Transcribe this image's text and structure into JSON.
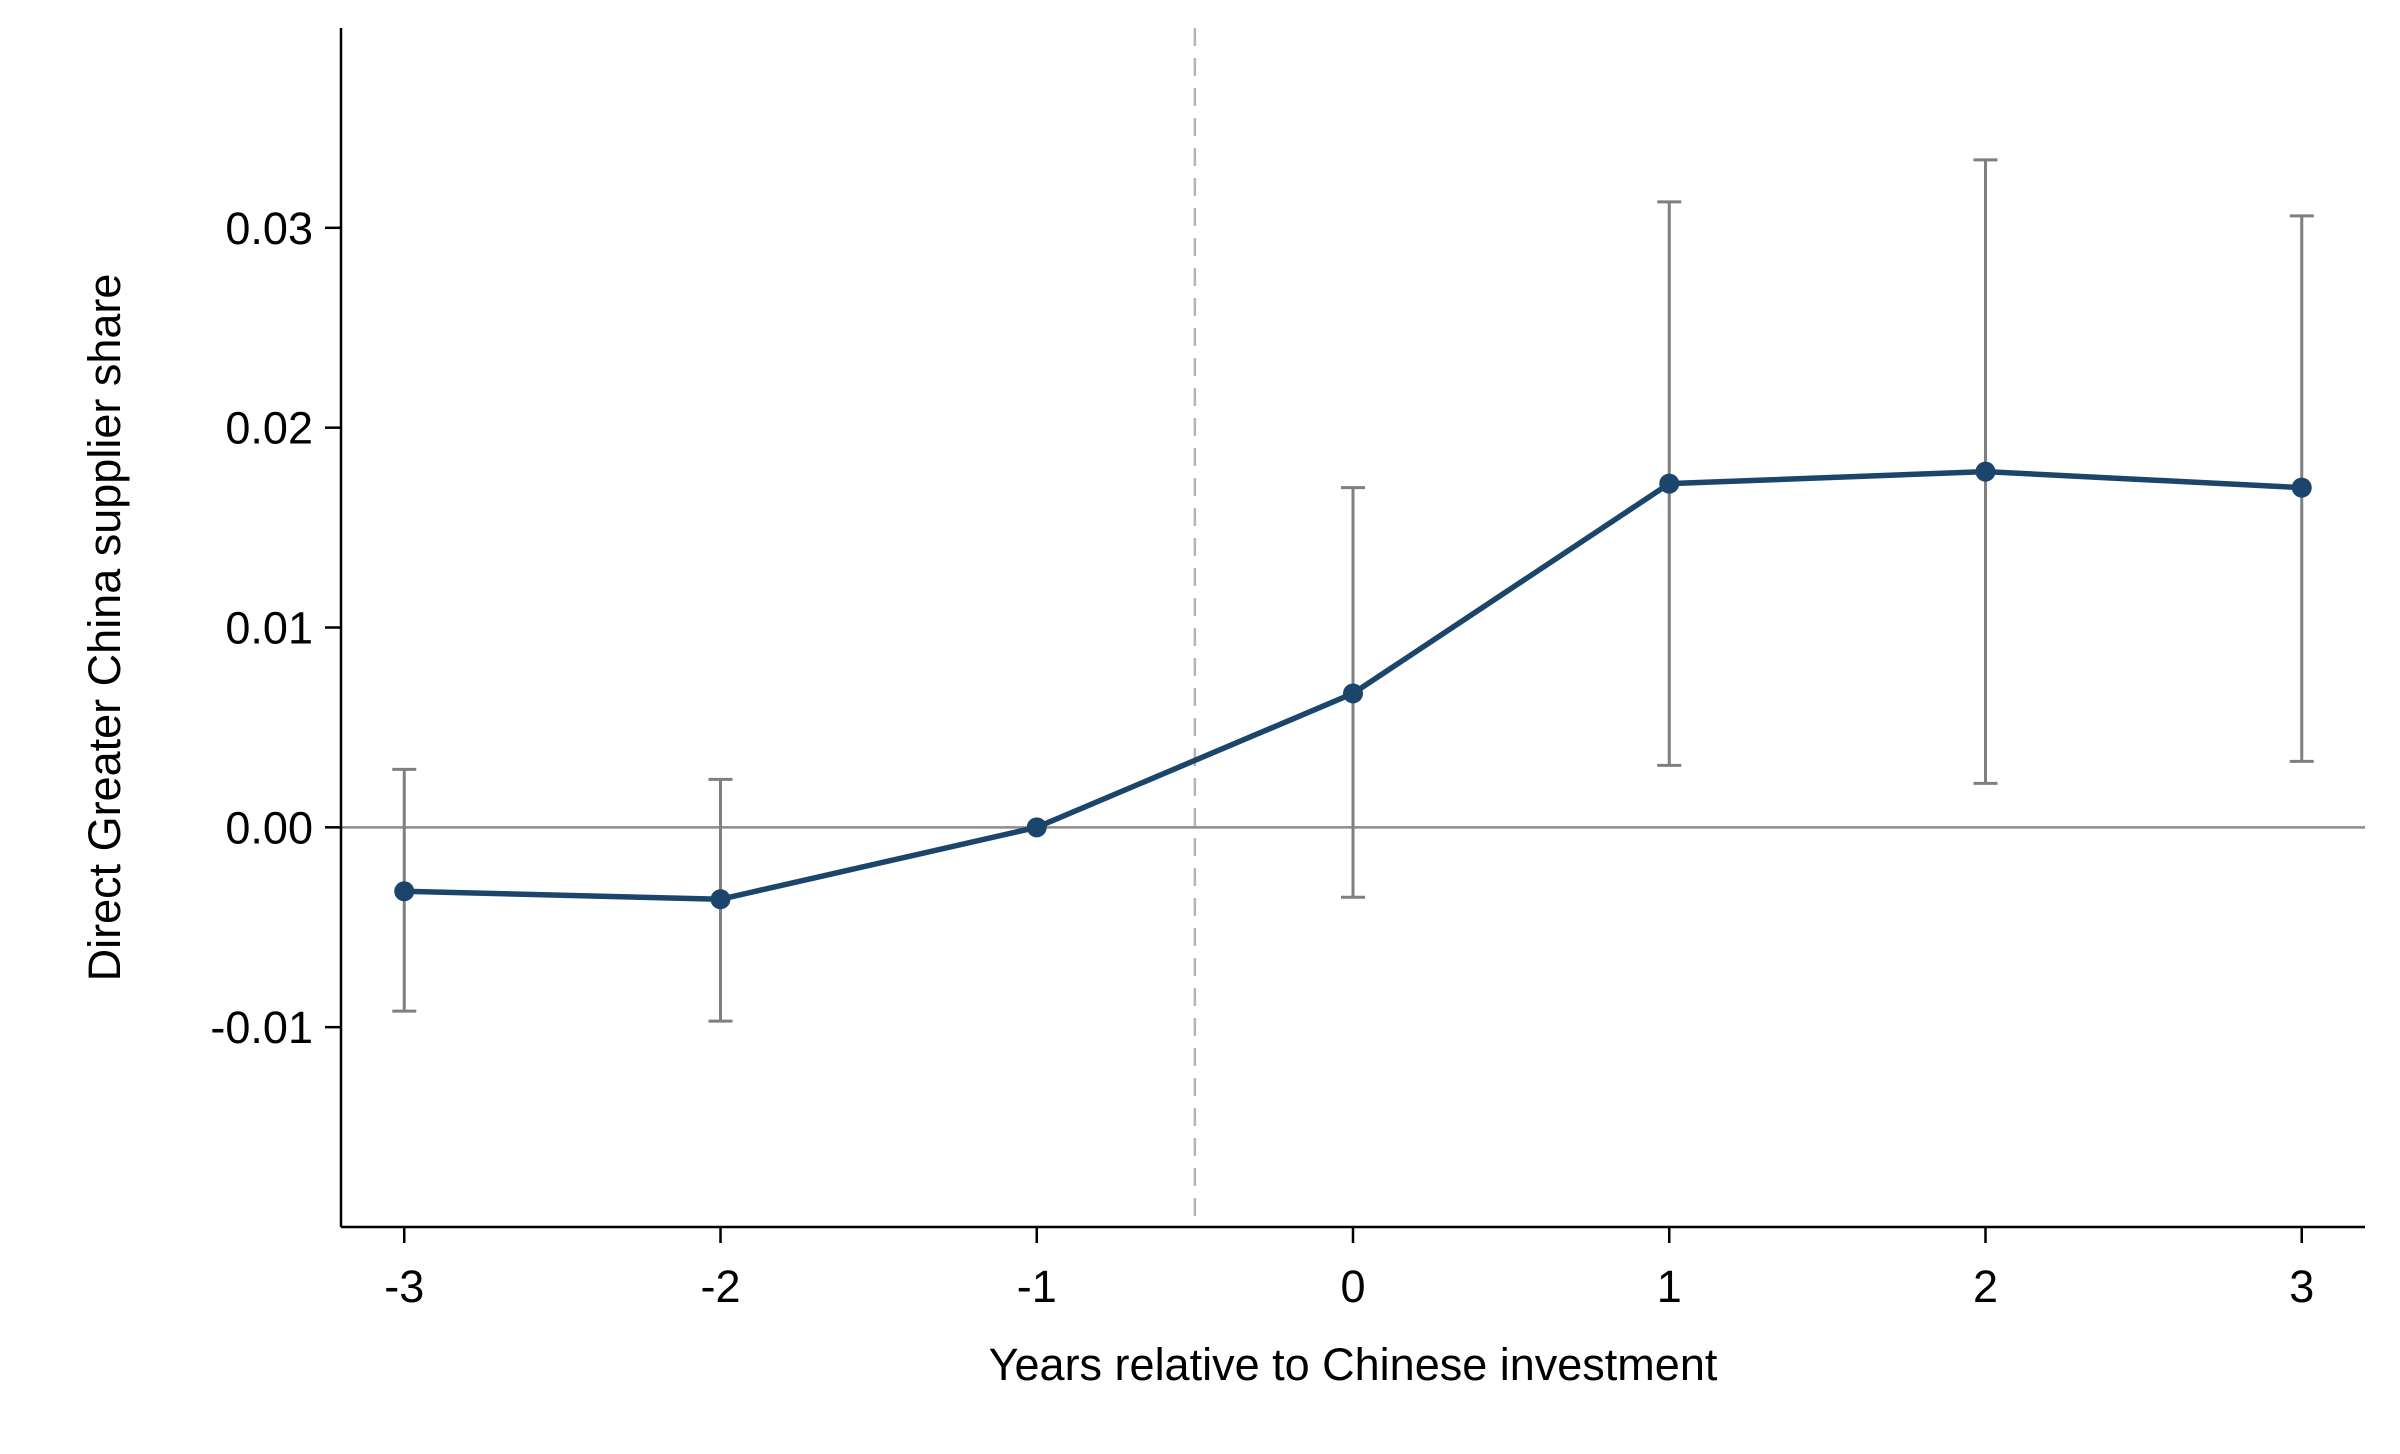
{
  "chart_data": {
    "type": "line",
    "xlabel": "Years relative to Chinese investment",
    "ylabel": "Direct Greater China supplier share",
    "x": [
      -3,
      -2,
      -1,
      0,
      1,
      2,
      3
    ],
    "x_tick_labels": [
      "-3",
      "-2",
      "-1",
      "0",
      "1",
      "2",
      "3"
    ],
    "xlim": [
      -3.2,
      3.2
    ],
    "y_ticks": [
      -0.01,
      0.0,
      0.01,
      0.02,
      0.03
    ],
    "y_tick_labels": [
      "-0.01",
      "0.00",
      "0.01",
      "0.02",
      "0.03"
    ],
    "ylim": [
      -0.02,
      0.04
    ],
    "series": [
      {
        "values": [
          -0.0032,
          -0.0036,
          0.0,
          0.0067,
          0.0172,
          0.0178,
          0.017
        ],
        "ci_lower": [
          -0.0092,
          -0.0097,
          null,
          -0.0035,
          0.0031,
          0.0022,
          0.0033
        ],
        "ci_upper": [
          0.0029,
          0.0024,
          null,
          0.017,
          0.0313,
          0.0334,
          0.0306
        ]
      }
    ],
    "reference_lines": {
      "horizontal_y": 0.0,
      "vertical_dashed_x": -0.5
    },
    "grid": false,
    "colors": {
      "series": "#1c456b",
      "ci": "#7f7f7f",
      "zero_line": "#8c8c8c",
      "event_line": "#b4b4b4",
      "axis": "#000000"
    }
  }
}
